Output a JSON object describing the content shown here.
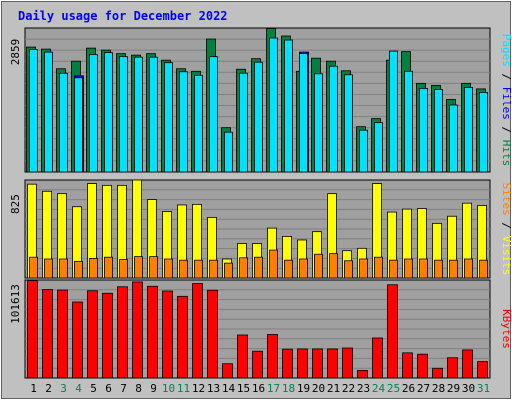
{
  "chart_data": [
    {
      "type": "bar",
      "title": "Daily usage for December 2022",
      "panel": "hits-files-pages",
      "y_max_label": "2859",
      "ylim": [
        0,
        2859
      ],
      "categories": [
        "1",
        "2",
        "3",
        "4",
        "5",
        "6",
        "7",
        "8",
        "9",
        "10",
        "11",
        "12",
        "13",
        "14",
        "15",
        "16",
        "17",
        "18",
        "19",
        "20",
        "21",
        "22",
        "23",
        "24",
        "25",
        "26",
        "27",
        "28",
        "29",
        "30",
        "31"
      ],
      "weekend_days": [
        "3",
        "4",
        "10",
        "11",
        "17",
        "18",
        "24",
        "25",
        "31"
      ],
      "series": [
        {
          "name": "Hits",
          "color": "#008040",
          "values": [
            2480,
            2440,
            2050,
            2200,
            2460,
            2420,
            2350,
            2320,
            2350,
            2220,
            2050,
            2000,
            2640,
            880,
            2040,
            2250,
            2850,
            2700,
            2000,
            2260,
            2200,
            2010,
            900,
            1060,
            2220,
            2390,
            1760,
            1720,
            1440,
            1760,
            1650
          ]
        },
        {
          "name": "Files",
          "color": "#00E0FF",
          "values": [
            2430,
            2380,
            1960,
            1870,
            2330,
            2370,
            2290,
            2280,
            2280,
            2170,
            1990,
            1920,
            2290,
            790,
            1960,
            2180,
            2660,
            2620,
            2350,
            1950,
            2100,
            1930,
            830,
            980,
            2400,
            2000,
            1660,
            1640,
            1330,
            1680,
            1580
          ]
        },
        {
          "name": "Pages",
          "color": "#0000FF",
          "values": [
            0,
            0,
            0,
            1910,
            0,
            0,
            0,
            0,
            0,
            0,
            0,
            0,
            0,
            0,
            0,
            0,
            0,
            0,
            2380,
            0,
            0,
            0,
            0,
            0,
            0,
            0,
            0,
            0,
            0,
            0,
            0
          ]
        }
      ],
      "legend_labels": {
        "pages": "Pages",
        "files": "Files",
        "hits": "Hits",
        "sep": " / "
      },
      "legend_colors": {
        "pages": "#00E0FF",
        "files": "#0000FF",
        "hits": "#008040"
      }
    },
    {
      "type": "bar",
      "panel": "sites-visits",
      "y_max_label": "825",
      "ylim": [
        0,
        825
      ],
      "series": [
        {
          "name": "Visits",
          "color": "#FFFF00",
          "values": [
            790,
            730,
            710,
            600,
            795,
            780,
            780,
            825,
            660,
            560,
            615,
            620,
            510,
            160,
            290,
            290,
            420,
            350,
            320,
            390,
            710,
            230,
            250,
            795,
            555,
            580,
            585,
            460,
            520,
            630,
            610
          ]
        },
        {
          "name": "Sites",
          "color": "#FF8000",
          "values": [
            175,
            160,
            160,
            140,
            165,
            175,
            155,
            180,
            180,
            160,
            150,
            150,
            150,
            125,
            170,
            175,
            235,
            150,
            160,
            200,
            205,
            145,
            160,
            175,
            150,
            160,
            160,
            150,
            150,
            160,
            150
          ]
        }
      ],
      "legend_labels": {
        "sites": "Sites",
        "visits": "Visits",
        "sep": " / "
      },
      "legend_colors": {
        "sites": "#FF8000",
        "visits": "#FFFF00"
      }
    },
    {
      "type": "bar",
      "panel": "kbytes",
      "y_max_label": "101613",
      "ylim": [
        0,
        101613
      ],
      "series": [
        {
          "name": "KBytes",
          "color": "#FF0000",
          "values": [
            101000,
            91700,
            91200,
            78800,
            90500,
            87900,
            94600,
            99600,
            95100,
            90200,
            84700,
            97900,
            91000,
            14800,
            44600,
            27800,
            45100,
            29900,
            30100,
            30100,
            30100,
            31100,
            7800,
            41500,
            96700,
            26100,
            24700,
            10100,
            21000,
            29100,
            17000
          ]
        }
      ],
      "legend_labels": {
        "kbytes": "KBytes"
      },
      "legend_colors": {
        "kbytes": "#FF0000"
      }
    }
  ],
  "colors": {
    "background": "#C0C0C0",
    "panel_bg": "#A0A0A0",
    "title": "#0000FF",
    "weekday_label": "#000000",
    "weekend_label": "#00805C"
  }
}
